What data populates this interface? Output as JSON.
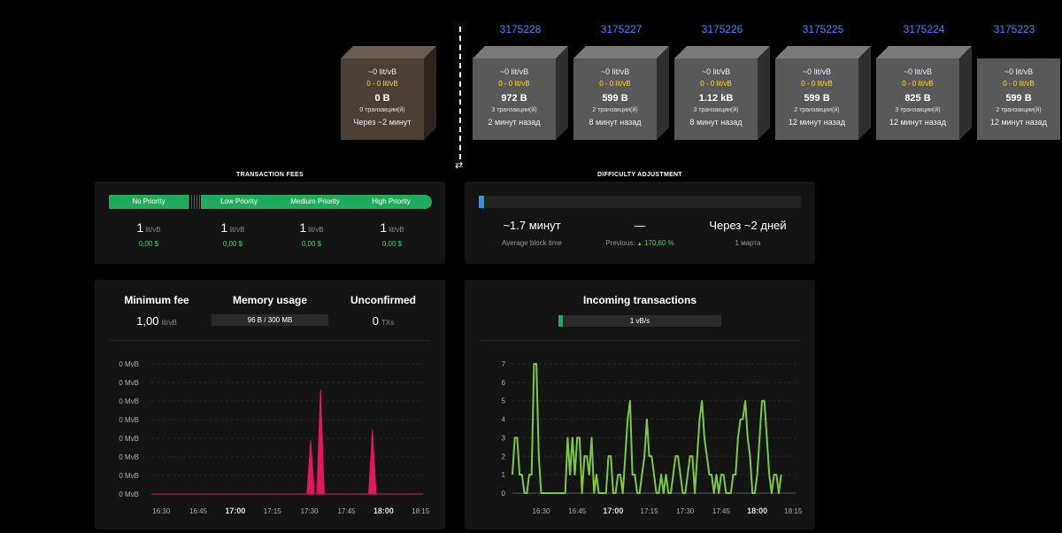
{
  "blocks": {
    "pending": {
      "fee": "~0 lit/vB",
      "range": "0 - 0 lit/vB",
      "size": "0 B",
      "txs": "0 транзакции(й)",
      "time": "Через ~2 минут"
    },
    "mined": [
      {
        "height": "3175228",
        "fee": "~0 lit/vB",
        "range": "0 - 0 lit/vB",
        "size": "972 B",
        "txs": "3 транзакции(й)",
        "time": "2 минут назад"
      },
      {
        "height": "3175227",
        "fee": "~0 lit/vB",
        "range": "0 - 0 lit/vB",
        "size": "599 B",
        "txs": "2 транзакции(й)",
        "time": "8 минут назад"
      },
      {
        "height": "3175226",
        "fee": "~0 lit/vB",
        "range": "0 - 0 lit/vB",
        "size": "1.12 kB",
        "txs": "3 транзакции(й)",
        "time": "8 минут назад"
      },
      {
        "height": "3175225",
        "fee": "~0 lit/vB",
        "range": "0 - 0 lit/vB",
        "size": "599 B",
        "txs": "2 транзакции(й)",
        "time": "12 минут назад"
      },
      {
        "height": "3175224",
        "fee": "~0 lit/vB",
        "range": "0 - 0 lit/vB",
        "size": "825 B",
        "txs": "3 транзакции(й)",
        "time": "12 минут назад"
      },
      {
        "height": "3175223",
        "fee": "~0 lit/vB",
        "range": "0 - 0 lit/vB",
        "size": "599 B",
        "txs": "2 транзакции(й)",
        "time": "12 минут назад"
      }
    ]
  },
  "swap_icon": "⇄",
  "fees": {
    "title": "TRANSACTION FEES",
    "no_priority": "No Priority",
    "low_priority": "Low Priority",
    "medium_priority": "Medium Priority",
    "high_priority": "High Priority",
    "unit": "lit/vB",
    "columns": [
      {
        "value": "1",
        "usd": "0,00 $"
      },
      {
        "value": "1",
        "usd": "0,00 $"
      },
      {
        "value": "1",
        "usd": "0,00 $"
      },
      {
        "value": "1",
        "usd": "0,00 $"
      }
    ]
  },
  "difficulty": {
    "title": "DIFFICULTY ADJUSTMENT",
    "progress": 0.015,
    "avg_block_time": "~1.7 минут",
    "avg_block_time_label": "Average block time",
    "change": "—",
    "previous_label": "Previous:",
    "previous_arrow": "▲",
    "previous_value": "170,60 %",
    "eta": "Через ~2 дней",
    "eta_date": "1 марта"
  },
  "stats": {
    "min_fee_label": "Minimum fee",
    "min_fee_value": "1,00",
    "min_fee_unit": "lit/vB",
    "memory_label": "Memory usage",
    "memory_value": "96 B / 300 MB",
    "unconfirmed_label": "Unconfirmed",
    "unconfirmed_value": "0",
    "unconfirmed_unit": "TXs"
  },
  "incoming": {
    "title": "Incoming transactions",
    "rate": "1 vB/s"
  },
  "colors": {
    "mempool": "#e0195a",
    "incoming": "#7ec942",
    "accent": "#1faa5c",
    "link": "#3d8bfd"
  },
  "chart_data": [
    {
      "type": "area",
      "ylabels": [
        "0 MvB",
        "0 MvB",
        "0 MvB",
        "0 MvB",
        "0 MvB",
        "0 MvB",
        "0 MvB",
        "0 MvB"
      ],
      "xticks": [
        {
          "label": "16:30",
          "bold": false,
          "t": 0
        },
        {
          "label": "16:45",
          "bold": false,
          "t": 15
        },
        {
          "label": "17:00",
          "bold": true,
          "t": 30
        },
        {
          "label": "17:15",
          "bold": false,
          "t": 45
        },
        {
          "label": "17:30",
          "bold": false,
          "t": 60
        },
        {
          "label": "17:45",
          "bold": false,
          "t": 75
        },
        {
          "label": "18:00",
          "bold": true,
          "t": 90
        },
        {
          "label": "18:15",
          "bold": false,
          "t": 105
        }
      ],
      "xrange": [
        -4,
        106
      ],
      "ylim": [
        0,
        7.5
      ],
      "series": [
        {
          "points": [
            [
              -4,
              0
            ],
            [
              59,
              0
            ],
            [
              60.5,
              3.1
            ],
            [
              62,
              0
            ],
            [
              63,
              0
            ],
            [
              64.5,
              6.0
            ],
            [
              66,
              0
            ],
            [
              84,
              0
            ],
            [
              85.5,
              3.7
            ],
            [
              87,
              0
            ],
            [
              106,
              0
            ]
          ]
        }
      ]
    },
    {
      "type": "line",
      "yticks": [
        0,
        1,
        2,
        3,
        4,
        5,
        6,
        7
      ],
      "xticks": [
        {
          "label": "16:30",
          "bold": false,
          "t": 0
        },
        {
          "label": "16:45",
          "bold": false,
          "t": 15
        },
        {
          "label": "17:00",
          "bold": true,
          "t": 30
        },
        {
          "label": "17:15",
          "bold": false,
          "t": 45
        },
        {
          "label": "17:30",
          "bold": false,
          "t": 60
        },
        {
          "label": "17:45",
          "bold": false,
          "t": 75
        },
        {
          "label": "18:00",
          "bold": true,
          "t": 90
        },
        {
          "label": "18:15",
          "bold": false,
          "t": 105
        }
      ],
      "xrange": [
        -12,
        106
      ],
      "ylim": [
        0,
        7
      ],
      "series": [
        {
          "points": [
            [
              -12,
              1
            ],
            [
              -11,
              3
            ],
            [
              -10,
              3
            ],
            [
              -9,
              1
            ],
            [
              -8,
              1
            ],
            [
              -7,
              0
            ],
            [
              -6,
              0
            ],
            [
              -5,
              1
            ],
            [
              -4,
              1
            ],
            [
              -3,
              7
            ],
            [
              -2,
              7
            ],
            [
              -1,
              2
            ],
            [
              0,
              0
            ],
            [
              10,
              0
            ],
            [
              11,
              3
            ],
            [
              12,
              1
            ],
            [
              13,
              3
            ],
            [
              14,
              1
            ],
            [
              15,
              3
            ],
            [
              16,
              3
            ],
            [
              17,
              0
            ],
            [
              18,
              2
            ],
            [
              19,
              2
            ],
            [
              20,
              1
            ],
            [
              21,
              3
            ],
            [
              22,
              0
            ],
            [
              23,
              1
            ],
            [
              24,
              0
            ],
            [
              27,
              0
            ],
            [
              28,
              2
            ],
            [
              29,
              2
            ],
            [
              30,
              0
            ],
            [
              31,
              0
            ],
            [
              32,
              1
            ],
            [
              33,
              1
            ],
            [
              34,
              0
            ],
            [
              35,
              2
            ],
            [
              36,
              4
            ],
            [
              37,
              5
            ],
            [
              38,
              1
            ],
            [
              39,
              1
            ],
            [
              40,
              0
            ],
            [
              41,
              0
            ],
            [
              42,
              1
            ],
            [
              43,
              2
            ],
            [
              44,
              4
            ],
            [
              45,
              2
            ],
            [
              46,
              2
            ],
            [
              47,
              1
            ],
            [
              48,
              0
            ],
            [
              49,
              0
            ],
            [
              50,
              1
            ],
            [
              51,
              0
            ],
            [
              52,
              1
            ],
            [
              53,
              0
            ],
            [
              54,
              0
            ],
            [
              55,
              1
            ],
            [
              56,
              2
            ],
            [
              57,
              2
            ],
            [
              58,
              1
            ],
            [
              59,
              0
            ],
            [
              60,
              0
            ],
            [
              61,
              1
            ],
            [
              62,
              2
            ],
            [
              63,
              2
            ],
            [
              64,
              0
            ],
            [
              65,
              2
            ],
            [
              66,
              4
            ],
            [
              67,
              5
            ],
            [
              68,
              3
            ],
            [
              69,
              2
            ],
            [
              70,
              1
            ],
            [
              71,
              1
            ],
            [
              72,
              0
            ],
            [
              73,
              1
            ],
            [
              74,
              0
            ],
            [
              75,
              1
            ],
            [
              76,
              1
            ],
            [
              77,
              0
            ],
            [
              78,
              0
            ],
            [
              79,
              0
            ],
            [
              80,
              1
            ],
            [
              81,
              1
            ],
            [
              82,
              3
            ],
            [
              83,
              4
            ],
            [
              84,
              4
            ],
            [
              85,
              5
            ],
            [
              86,
              3
            ],
            [
              87,
              2
            ],
            [
              88,
              0
            ],
            [
              89,
              0
            ],
            [
              90,
              1
            ],
            [
              91,
              3
            ],
            [
              92,
              5
            ],
            [
              93,
              5
            ],
            [
              94,
              3
            ],
            [
              95,
              1
            ],
            [
              96,
              0
            ],
            [
              97,
              1
            ],
            [
              98,
              1
            ],
            [
              99,
              0
            ],
            [
              100,
              1
            ]
          ]
        }
      ]
    }
  ]
}
